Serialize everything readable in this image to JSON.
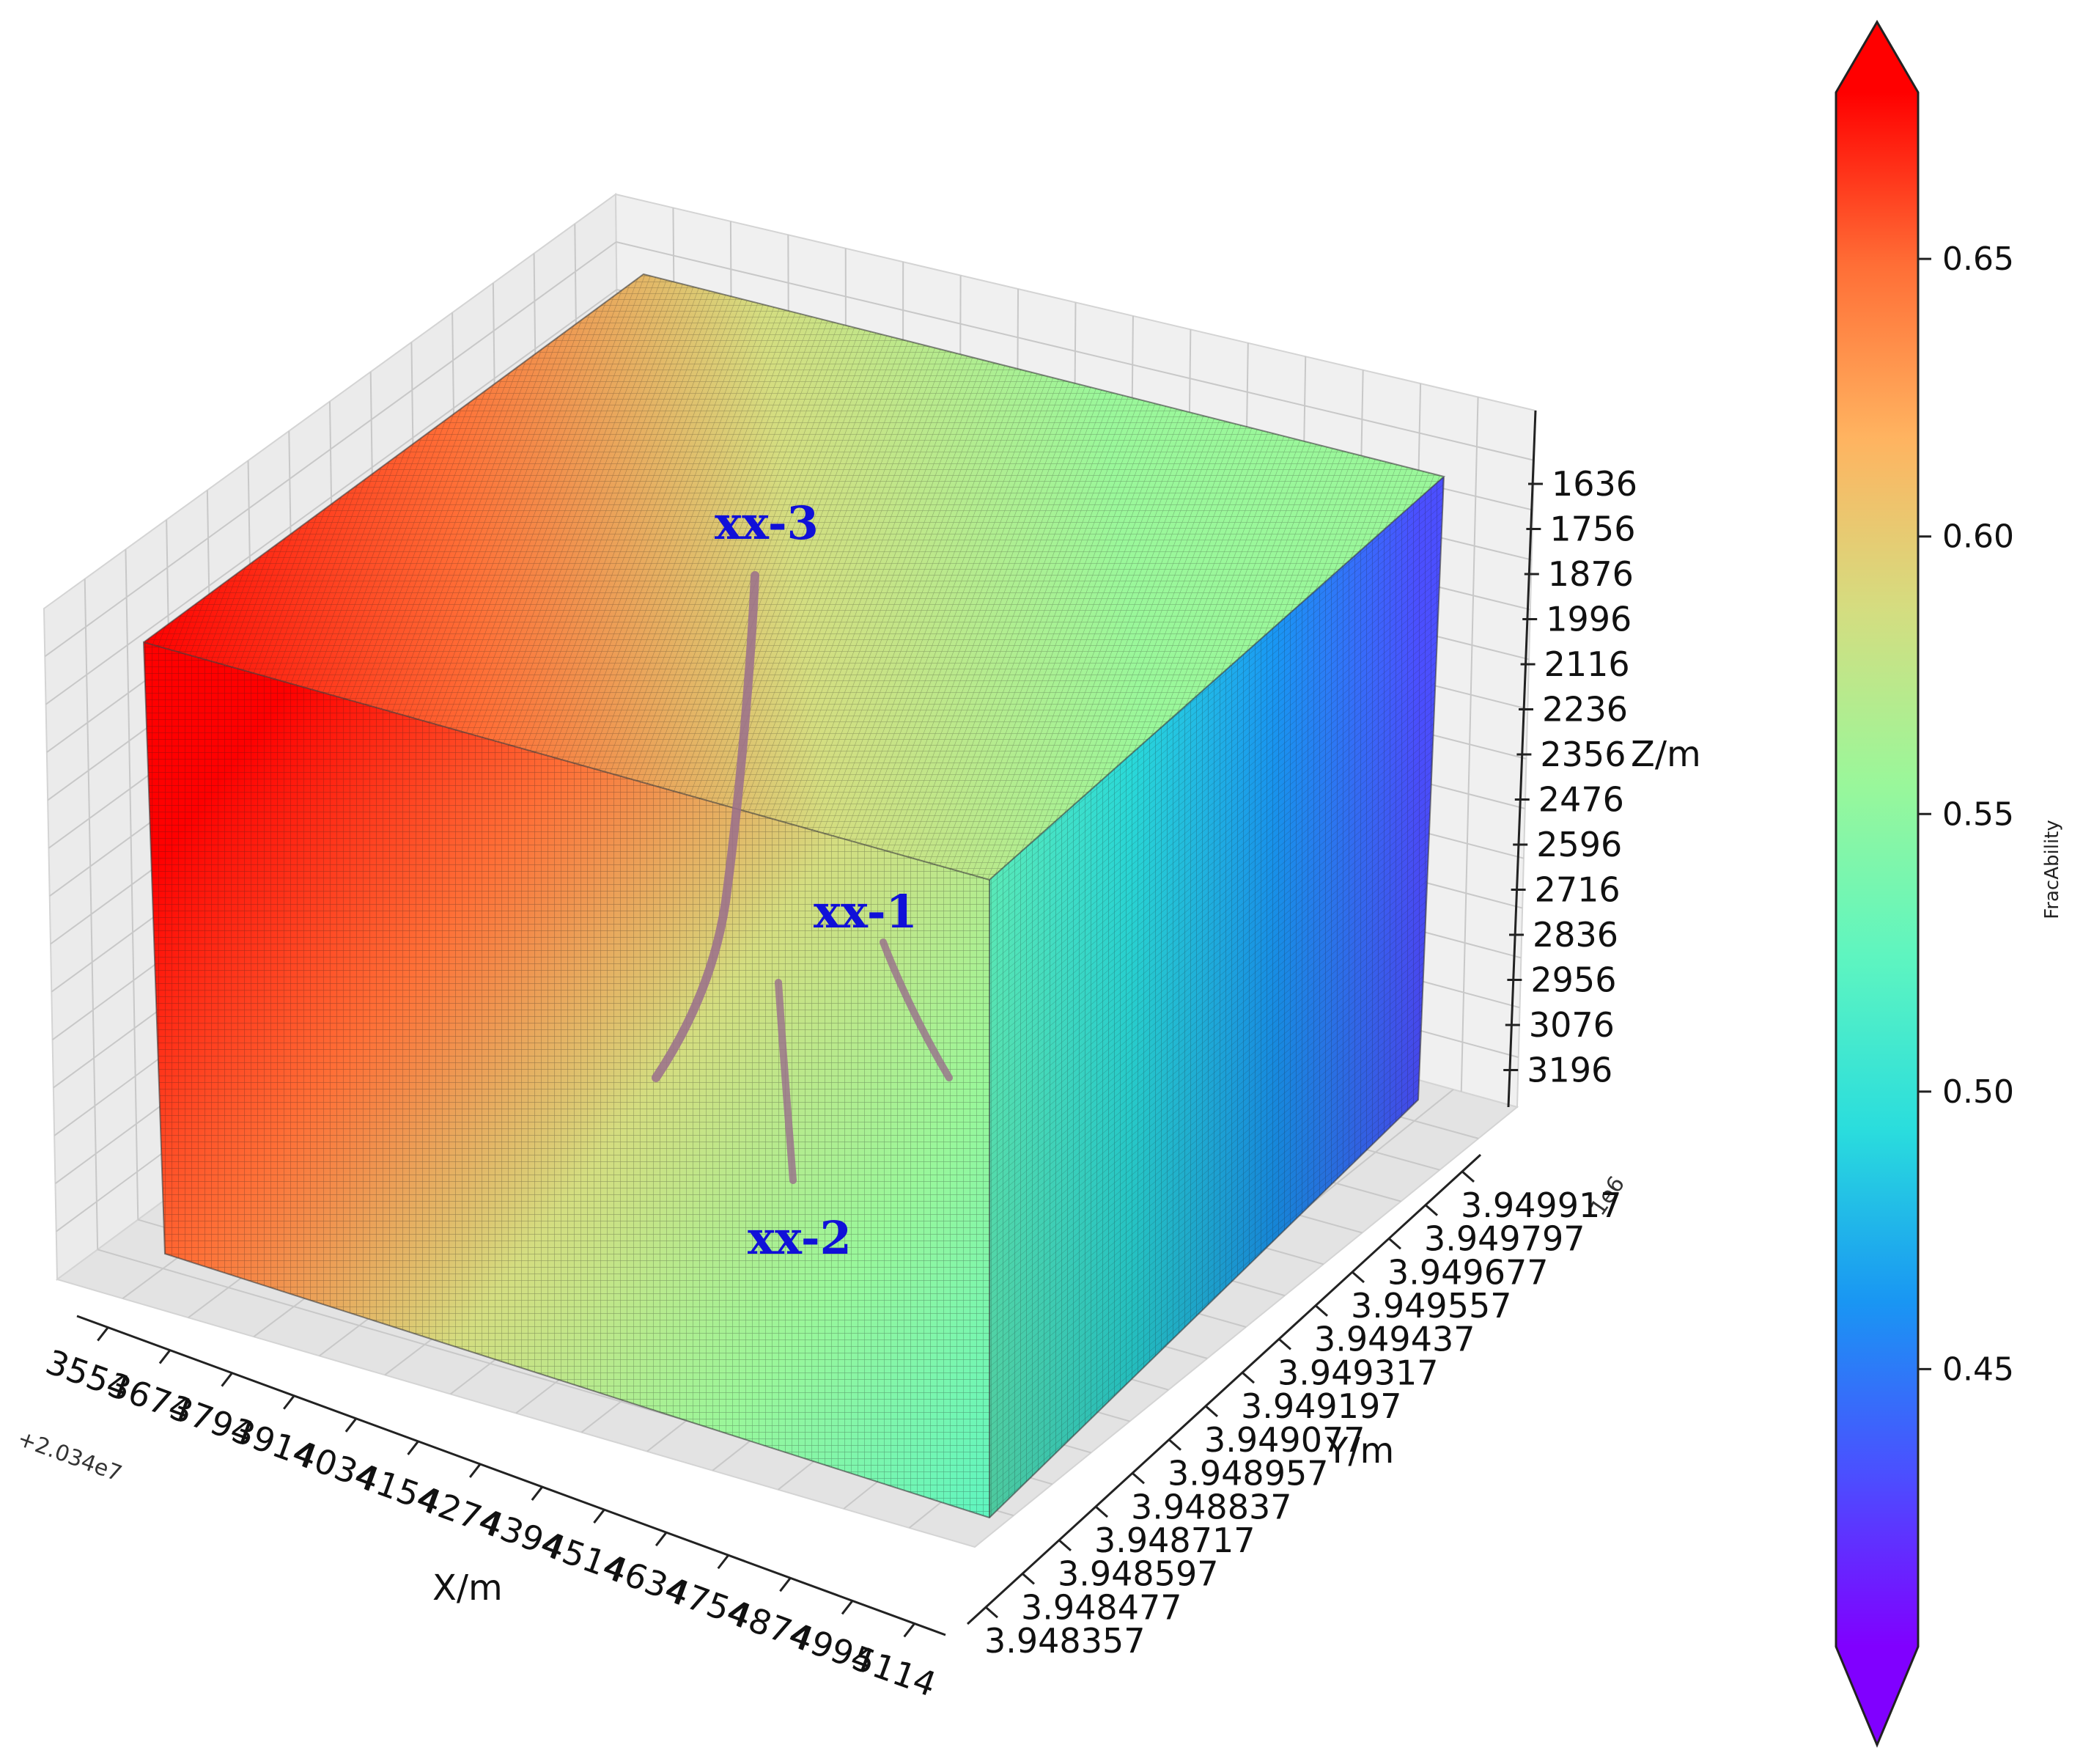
{
  "colors": {
    "colormap": [
      "#8000ff",
      "#4b4fff",
      "#1996f3",
      "#2adddd",
      "#5ef5c0",
      "#9af79a",
      "#d4dd80",
      "#ffb360",
      "#ff6e36",
      "#ff0000"
    ],
    "pane": "#ebebeb",
    "grid": "#c8c8c8",
    "edge": "#222222",
    "well_label": "#1010d8",
    "well_path": "#9a6f8c"
  },
  "chart_data": {
    "type": "3d-voxel",
    "colorbar": {
      "label": "FracAbility",
      "range": [
        0.4,
        0.68
      ],
      "ticks": [
        "0.45",
        "0.50",
        "0.55",
        "0.60",
        "0.65"
      ],
      "extend": "both"
    },
    "x_axis": {
      "label": "X/m",
      "offset": "+2.034e7",
      "ticks": [
        "3554",
        "3674",
        "3794",
        "3914",
        "4034",
        "4154",
        "4274",
        "4394",
        "4514",
        "4634",
        "4754",
        "4874",
        "4994",
        "5114"
      ]
    },
    "y_axis": {
      "label": "Y/m",
      "offset": "1e6",
      "ticks": [
        "3.948357",
        "3.948477",
        "3.948597",
        "3.948717",
        "3.948837",
        "3.948957",
        "3.949077",
        "3.949197",
        "3.949317",
        "3.949437",
        "3.949557",
        "3.949677",
        "3.949797",
        "3.949917"
      ]
    },
    "z_axis": {
      "label": "Z/m",
      "ticks": [
        "1636",
        "1756",
        "1876",
        "1996",
        "2116",
        "2236",
        "2356",
        "2476",
        "2596",
        "2716",
        "2836",
        "2956",
        "3076",
        "3196"
      ]
    },
    "wells": [
      {
        "name": "xx-3"
      },
      {
        "name": "xx-1"
      },
      {
        "name": "xx-2"
      }
    ]
  }
}
